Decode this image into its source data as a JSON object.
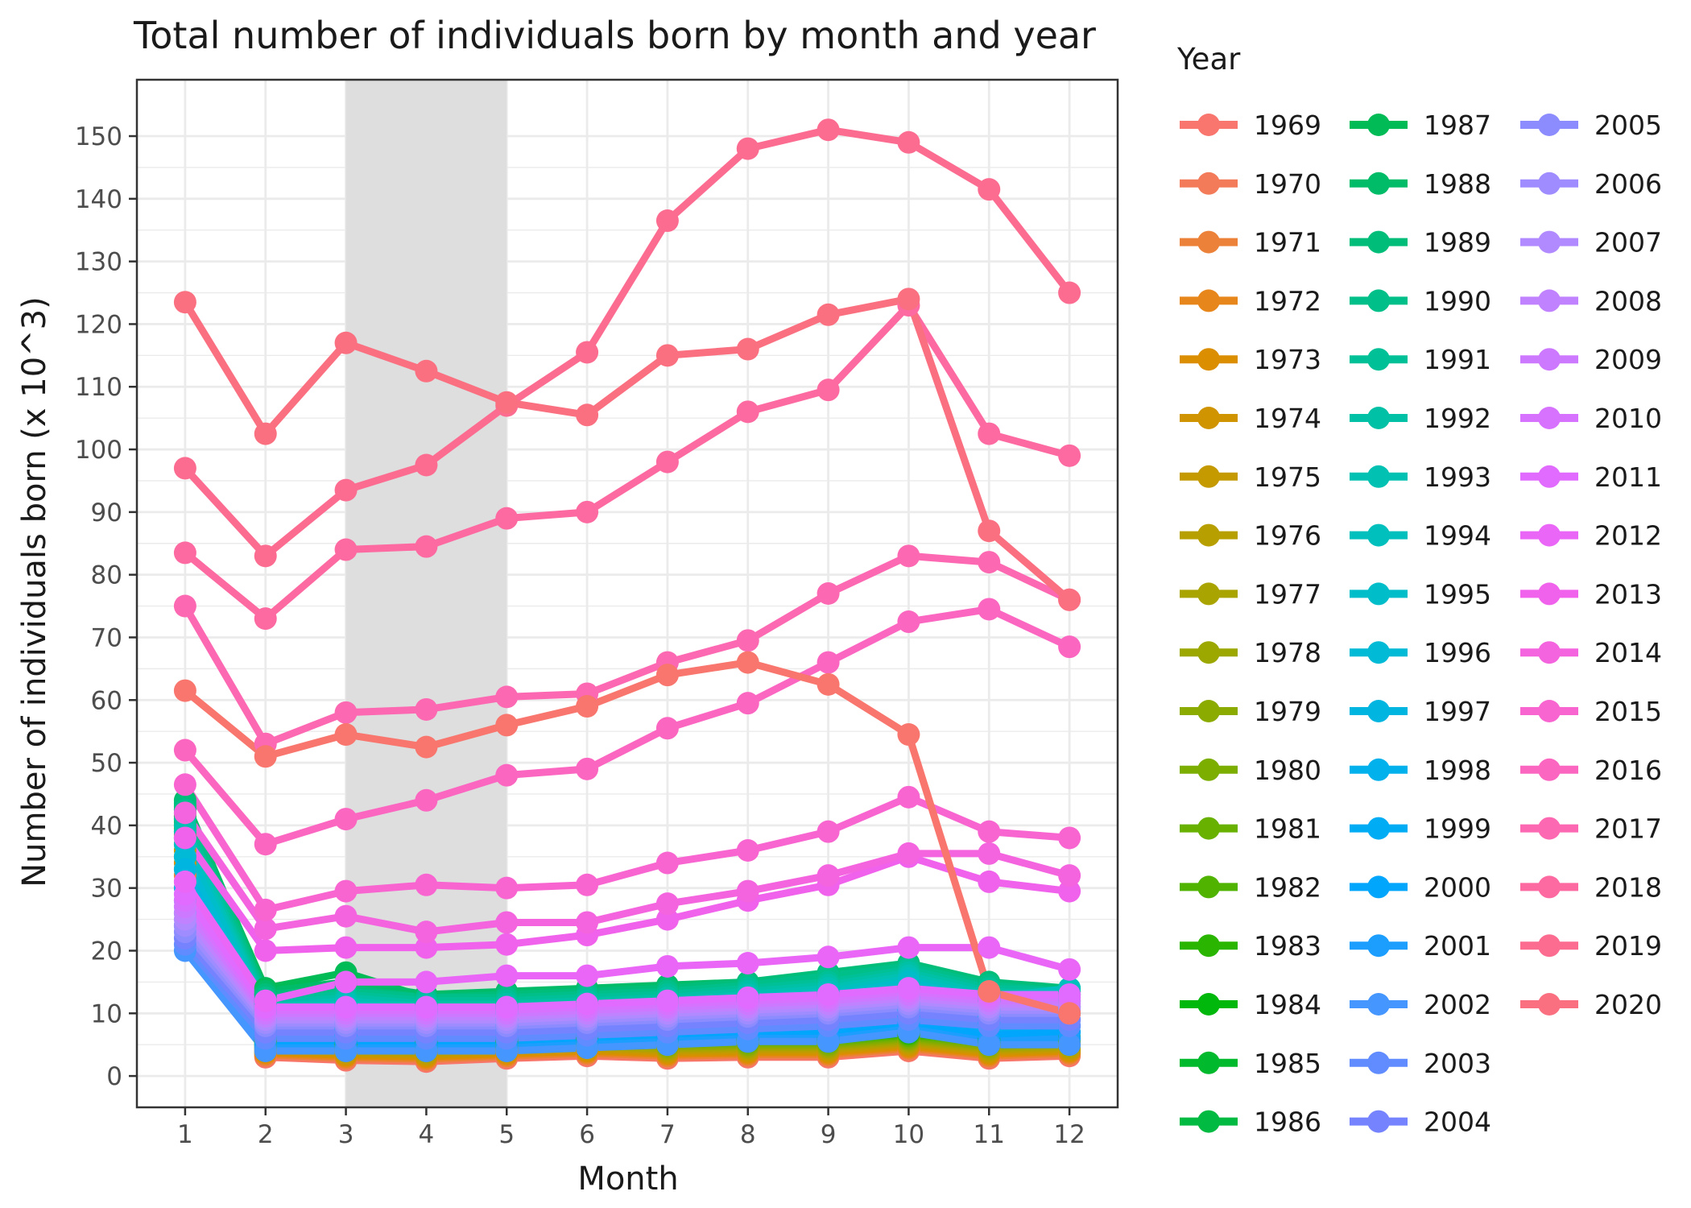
{
  "chart_data": {
    "type": "line",
    "title": "Total number of individuals born by month and year",
    "xlabel": "Month",
    "ylabel": "Number of individuals born (x 10^3)",
    "x": [
      1,
      2,
      3,
      4,
      5,
      6,
      7,
      8,
      9,
      10,
      11,
      12
    ],
    "xlim": [
      0.4,
      12.6
    ],
    "ylim": [
      -5,
      159
    ],
    "yticks": [
      0,
      10,
      20,
      30,
      40,
      50,
      60,
      70,
      80,
      90,
      100,
      110,
      120,
      130,
      140,
      150
    ],
    "shaded_band": [
      3,
      5
    ],
    "grid": true,
    "legend_title": "Year",
    "legend_position": "right",
    "series": [
      {
        "name": "1969",
        "color": "#F8766D",
        "values": [
          30,
          3,
          2.5,
          2.3,
          2.8,
          3.2,
          2.8,
          3,
          3,
          4,
          2.8,
          3.2
        ]
      },
      {
        "name": "1970",
        "color": "#F37B59",
        "values": [
          31,
          3.2,
          2.7,
          2.5,
          3,
          3.4,
          3,
          3.2,
          3.2,
          4.2,
          3,
          3.4
        ]
      },
      {
        "name": "1971",
        "color": "#EC8239",
        "values": [
          32,
          3.4,
          2.9,
          2.7,
          3.2,
          3.6,
          3.2,
          3.4,
          3.4,
          4.4,
          3.2,
          3.6
        ]
      },
      {
        "name": "1972",
        "color": "#E7861B",
        "values": [
          33,
          3.6,
          3.1,
          2.9,
          3.4,
          3.8,
          3.4,
          3.6,
          3.6,
          4.6,
          3.4,
          3.8
        ]
      },
      {
        "name": "1973",
        "color": "#DB8E00",
        "values": [
          34,
          3.8,
          3.3,
          3.1,
          3.6,
          4,
          3.6,
          3.8,
          3.8,
          4.8,
          3.6,
          4
        ]
      },
      {
        "name": "1974",
        "color": "#CF9400",
        "values": [
          35,
          4,
          3.5,
          3.3,
          3.8,
          4.2,
          3.8,
          4,
          4,
          5,
          3.8,
          4.2
        ]
      },
      {
        "name": "1975",
        "color": "#C49A00",
        "values": [
          36,
          4.2,
          3.7,
          3.5,
          4,
          4.4,
          4,
          4.2,
          4.2,
          5.2,
          4,
          4.4
        ]
      },
      {
        "name": "1976",
        "color": "#B89F00",
        "values": [
          37,
          4.4,
          3.9,
          3.7,
          4.2,
          4.6,
          4.2,
          4.4,
          4.4,
          5.4,
          4.2,
          4.6
        ]
      },
      {
        "name": "1977",
        "color": "#AAA400",
        "values": [
          38,
          4.6,
          4.1,
          3.9,
          4.4,
          4.8,
          4.4,
          4.6,
          4.6,
          5.6,
          4.4,
          4.8
        ]
      },
      {
        "name": "1978",
        "color": "#9CA700",
        "values": [
          38.5,
          4.8,
          4.3,
          4.1,
          4.6,
          5,
          4.6,
          4.8,
          4.8,
          5.8,
          4.6,
          5
        ]
      },
      {
        "name": "1979",
        "color": "#8CAB00",
        "values": [
          39,
          5,
          4.5,
          4.3,
          4.8,
          5.2,
          4.8,
          5,
          5,
          6,
          4.8,
          5.2
        ]
      },
      {
        "name": "1980",
        "color": "#7CAE00",
        "values": [
          39.5,
          5.2,
          4.7,
          4.5,
          5,
          5.4,
          5,
          5.2,
          5.2,
          6.2,
          5,
          5.4
        ]
      },
      {
        "name": "1981",
        "color": "#68B100",
        "values": [
          40,
          5.4,
          4.9,
          4.7,
          5.2,
          5.6,
          5.2,
          5.4,
          5.4,
          6.4,
          5.2,
          5.6
        ]
      },
      {
        "name": "1982",
        "color": "#4FB300",
        "values": [
          40.5,
          5.6,
          5.1,
          4.9,
          5.4,
          5.8,
          5.4,
          5.6,
          5.6,
          6.6,
          5.4,
          5.8
        ]
      },
      {
        "name": "1983",
        "color": "#2AB600",
        "values": [
          41,
          5.8,
          5.3,
          5.1,
          5.6,
          6,
          5.6,
          5.8,
          5.8,
          6.8,
          5.6,
          6
        ]
      },
      {
        "name": "1984",
        "color": "#00B70C",
        "values": [
          41.5,
          6,
          5.5,
          5.3,
          5.8,
          6.2,
          5.8,
          6,
          6,
          7,
          5.8,
          6.2
        ]
      },
      {
        "name": "1985",
        "color": "#00B92D",
        "values": [
          42,
          12,
          11,
          10.5,
          11,
          11.5,
          12,
          12.5,
          13,
          14,
          12,
          11
        ]
      },
      {
        "name": "1986",
        "color": "#00BA42",
        "values": [
          42.5,
          13,
          12,
          11.5,
          12,
          12.5,
          13,
          13.5,
          14,
          15,
          13,
          12
        ]
      },
      {
        "name": "1987",
        "color": "#00BB56",
        "values": [
          43,
          14,
          16.5,
          12.5,
          13,
          13.5,
          14,
          14.5,
          15,
          16,
          14,
          13
        ]
      },
      {
        "name": "1988",
        "color": "#00BC68",
        "values": [
          44,
          13.5,
          15,
          13,
          13.5,
          14,
          14.5,
          15,
          16,
          17,
          14.5,
          13.5
        ]
      },
      {
        "name": "1989",
        "color": "#00BE79",
        "values": [
          43.5,
          13,
          14,
          12.5,
          13,
          13.5,
          14,
          15,
          16.5,
          18,
          15,
          14
        ]
      },
      {
        "name": "1990",
        "color": "#00BF89",
        "values": [
          42.5,
          12.5,
          13.5,
          12.5,
          12.5,
          13,
          13.5,
          14.5,
          16,
          17.5,
          14.5,
          13.5
        ]
      },
      {
        "name": "1991",
        "color": "#00C098",
        "values": [
          41,
          12,
          13,
          12,
          12,
          12.5,
          13,
          14,
          15,
          17,
          14,
          13.5
        ]
      },
      {
        "name": "1992",
        "color": "#00C1A5",
        "values": [
          40,
          11.5,
          12.5,
          11.5,
          11.5,
          12,
          12.5,
          13.5,
          14.5,
          16.5,
          13.5,
          13
        ]
      },
      {
        "name": "1993",
        "color": "#00C1B2",
        "values": [
          39,
          11,
          12,
          11,
          11,
          11.5,
          12,
          13,
          14,
          16,
          13,
          12.5
        ]
      },
      {
        "name": "1994",
        "color": "#00C0BE",
        "values": [
          38,
          10.5,
          11.5,
          10.5,
          10.5,
          11,
          11.5,
          12.5,
          13.5,
          15.5,
          12.5,
          14
        ]
      },
      {
        "name": "1995",
        "color": "#00BDCA",
        "values": [
          37,
          10,
          11,
          10,
          10,
          10.5,
          11,
          12,
          13,
          15,
          12,
          12
        ]
      },
      {
        "name": "1996",
        "color": "#00BAD6",
        "values": [
          35,
          9,
          9.5,
          9,
          9,
          9.5,
          10,
          10.5,
          11,
          12.5,
          10.5,
          11
        ]
      },
      {
        "name": "1997",
        "color": "#00B6E1",
        "values": [
          33,
          8,
          8.5,
          8,
          8,
          8.5,
          9,
          9.5,
          10,
          11.5,
          9.5,
          10
        ]
      },
      {
        "name": "1998",
        "color": "#00B1EB",
        "values": [
          30,
          7,
          7.5,
          7,
          7,
          7.5,
          8,
          8.5,
          9,
          10.5,
          8.5,
          9
        ]
      },
      {
        "name": "1999",
        "color": "#00ACF4",
        "values": [
          28,
          6,
          6.5,
          6,
          6,
          6.5,
          7,
          7.5,
          8,
          9.5,
          7.5,
          8
        ]
      },
      {
        "name": "2000",
        "color": "#00A5FC",
        "values": [
          26,
          5,
          5.5,
          5,
          5,
          5.5,
          6,
          6.5,
          7,
          8.5,
          6.5,
          7
        ]
      },
      {
        "name": "2001",
        "color": "#1C9EFF",
        "values": [
          24,
          4.5,
          4.5,
          4.5,
          4.5,
          5,
          5.5,
          6,
          6,
          7.5,
          5.5,
          6
        ]
      },
      {
        "name": "2002",
        "color": "#4696FF",
        "values": [
          20,
          4,
          4,
          4,
          4,
          4.5,
          5,
          5.5,
          5.5,
          7,
          5,
          5
        ]
      },
      {
        "name": "2003",
        "color": "#618CFF",
        "values": [
          21,
          6,
          6,
          6,
          6,
          6.5,
          7,
          7.5,
          8,
          9,
          8,
          8
        ]
      },
      {
        "name": "2004",
        "color": "#7683FF",
        "values": [
          22,
          7,
          7,
          7,
          7,
          7.5,
          8,
          8.5,
          9,
          10,
          9,
          9
        ]
      },
      {
        "name": "2005",
        "color": "#8C8CFF",
        "values": [
          23,
          8,
          8,
          8,
          8,
          8.5,
          9,
          9.5,
          10,
          11,
          10,
          10
        ]
      },
      {
        "name": "2006",
        "color": "#9F8CFF",
        "values": [
          24,
          8.5,
          8.5,
          8.5,
          8.5,
          9,
          9.5,
          10,
          10.5,
          11.5,
          10.5,
          10.5
        ]
      },
      {
        "name": "2007",
        "color": "#B28AFF",
        "values": [
          25,
          9,
          9,
          9,
          9,
          9.5,
          10,
          10.5,
          11,
          12,
          11,
          11
        ]
      },
      {
        "name": "2008",
        "color": "#C182FF",
        "values": [
          26,
          9.5,
          9.5,
          9.5,
          9.5,
          10,
          10.5,
          11,
          11.5,
          12.5,
          11.5,
          11.5
        ]
      },
      {
        "name": "2009",
        "color": "#CD79FF",
        "values": [
          27,
          10,
          10,
          10,
          10,
          10.5,
          11,
          11.5,
          12,
          13,
          12,
          12
        ]
      },
      {
        "name": "2010",
        "color": "#D772FF",
        "values": [
          28,
          10.5,
          10.5,
          10.5,
          10.5,
          11,
          11.5,
          12,
          12.5,
          13.5,
          12.5,
          12.5
        ]
      },
      {
        "name": "2011",
        "color": "#E16BFF",
        "values": [
          29,
          11,
          11,
          11,
          11,
          11.5,
          12,
          12.5,
          13,
          14,
          13,
          13
        ]
      },
      {
        "name": "2012",
        "color": "#EA66F7",
        "values": [
          31,
          12,
          15,
          15,
          16,
          16,
          17.5,
          18,
          19,
          20.5,
          20.5,
          17
        ]
      },
      {
        "name": "2013",
        "color": "#F062EB",
        "values": [
          38,
          20,
          20.5,
          20.5,
          21,
          22.5,
          25,
          28,
          30.5,
          35,
          31,
          29.5
        ]
      },
      {
        "name": "2014",
        "color": "#F464DE",
        "values": [
          42,
          23.5,
          25.5,
          23,
          24.5,
          24.5,
          27.5,
          29.5,
          32,
          35.5,
          35.5,
          32
        ]
      },
      {
        "name": "2015",
        "color": "#F865D0",
        "values": [
          46.5,
          26.5,
          29.5,
          30.5,
          30,
          30.5,
          34,
          36,
          39,
          44.5,
          39,
          38
        ]
      },
      {
        "name": "2016",
        "color": "#FB66C1",
        "values": [
          52,
          37,
          41,
          44,
          48,
          49,
          55.5,
          59.5,
          66,
          72.5,
          74.5,
          68.5
        ]
      },
      {
        "name": "2017",
        "color": "#FC68B1",
        "values": [
          75,
          53,
          58,
          58.5,
          60.5,
          61,
          66,
          69.5,
          77,
          83,
          82,
          76
        ]
      },
      {
        "name": "2018",
        "color": "#FD6AA1",
        "values": [
          83.5,
          73,
          84,
          84.5,
          89,
          90,
          98,
          106,
          109.5,
          123,
          102.5,
          99
        ]
      },
      {
        "name": "2019",
        "color": "#FC6C90",
        "values": [
          97,
          83,
          93.5,
          97.5,
          107,
          115.5,
          136.5,
          148,
          151,
          149,
          141.5,
          125
        ]
      },
      {
        "name": "2020",
        "color": "#FA7080",
        "values": [
          123.5,
          102.5,
          117,
          112.5,
          107.5,
          105.5,
          115,
          116,
          121.5,
          124,
          87,
          76
        ]
      },
      {
        "name": "",
        "color": "#F8766D",
        "values": [
          61.5,
          51,
          54.5,
          52.5,
          56,
          59,
          64,
          66,
          62.5,
          54.5,
          13.5,
          10
        ]
      }
    ]
  }
}
